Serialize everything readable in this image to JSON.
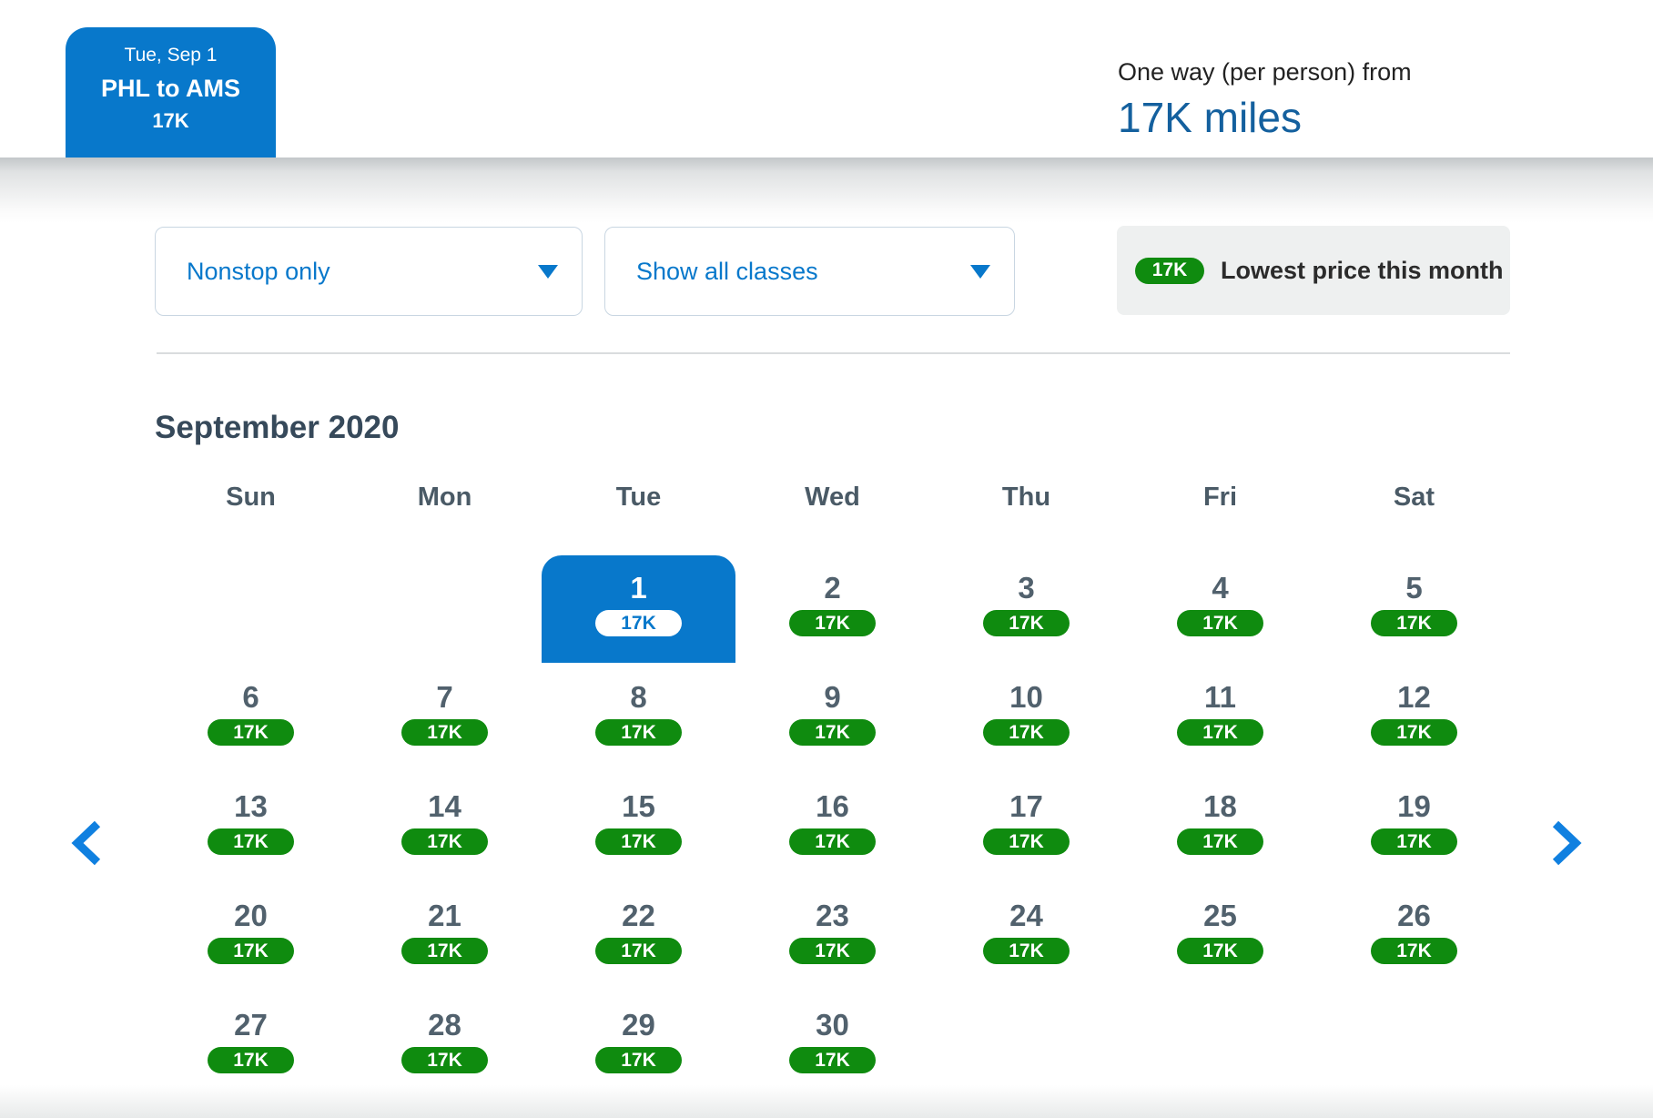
{
  "trip_tab": {
    "date": "Tue, Sep 1",
    "route": "PHL to AMS",
    "price": "17K"
  },
  "price_summary": {
    "label": "One way (per person) from",
    "value": "17K miles"
  },
  "filters": {
    "stops": {
      "value": "Nonstop only"
    },
    "cabin": {
      "value": "Show all classes"
    }
  },
  "legend": {
    "badge": "17K",
    "label": "Lowest price this month"
  },
  "calendar": {
    "month_title": "September 2020",
    "weekdays": [
      "Sun",
      "Mon",
      "Tue",
      "Wed",
      "Thu",
      "Fri",
      "Sat"
    ],
    "weeks": [
      [
        null,
        null,
        {
          "day": "1",
          "price": "17K",
          "selected": true
        },
        {
          "day": "2",
          "price": "17K"
        },
        {
          "day": "3",
          "price": "17K"
        },
        {
          "day": "4",
          "price": "17K"
        },
        {
          "day": "5",
          "price": "17K"
        }
      ],
      [
        {
          "day": "6",
          "price": "17K"
        },
        {
          "day": "7",
          "price": "17K"
        },
        {
          "day": "8",
          "price": "17K"
        },
        {
          "day": "9",
          "price": "17K"
        },
        {
          "day": "10",
          "price": "17K"
        },
        {
          "day": "11",
          "price": "17K"
        },
        {
          "day": "12",
          "price": "17K"
        }
      ],
      [
        {
          "day": "13",
          "price": "17K"
        },
        {
          "day": "14",
          "price": "17K"
        },
        {
          "day": "15",
          "price": "17K"
        },
        {
          "day": "16",
          "price": "17K"
        },
        {
          "day": "17",
          "price": "17K"
        },
        {
          "day": "18",
          "price": "17K"
        },
        {
          "day": "19",
          "price": "17K"
        }
      ],
      [
        {
          "day": "20",
          "price": "17K"
        },
        {
          "day": "21",
          "price": "17K"
        },
        {
          "day": "22",
          "price": "17K"
        },
        {
          "day": "23",
          "price": "17K"
        },
        {
          "day": "24",
          "price": "17K"
        },
        {
          "day": "25",
          "price": "17K"
        },
        {
          "day": "26",
          "price": "17K"
        }
      ],
      [
        {
          "day": "27",
          "price": "17K"
        },
        {
          "day": "28",
          "price": "17K"
        },
        {
          "day": "29",
          "price": "17K"
        },
        {
          "day": "30",
          "price": "17K"
        },
        null,
        null,
        null
      ]
    ]
  },
  "colors": {
    "brand_blue": "#0878cb",
    "dark_blue": "#14609e",
    "available_green": "#0f8b0f",
    "slate_text": "#36495a",
    "legend_bg": "#eef0f0"
  }
}
